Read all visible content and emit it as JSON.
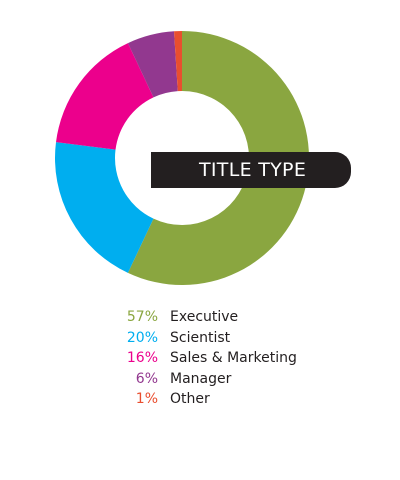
{
  "chart_data": {
    "type": "pie",
    "variant": "donut",
    "title": "TITLE TYPE",
    "slices": [
      {
        "label": "Executive",
        "value": 57,
        "value_label": "57%",
        "color": "#8aa640"
      },
      {
        "label": "Scientist",
        "value": 20,
        "value_label": "20%",
        "color": "#00aeef"
      },
      {
        "label": "Sales & Marketing",
        "value": 16,
        "value_label": "16%",
        "color": "#ec008c"
      },
      {
        "label": "Manager",
        "value": 6,
        "value_label": "6%",
        "color": "#92388f"
      },
      {
        "label": "Other",
        "value": 1,
        "value_label": "1%",
        "color": "#e94e2f"
      }
    ],
    "legend_position": "bottom"
  }
}
